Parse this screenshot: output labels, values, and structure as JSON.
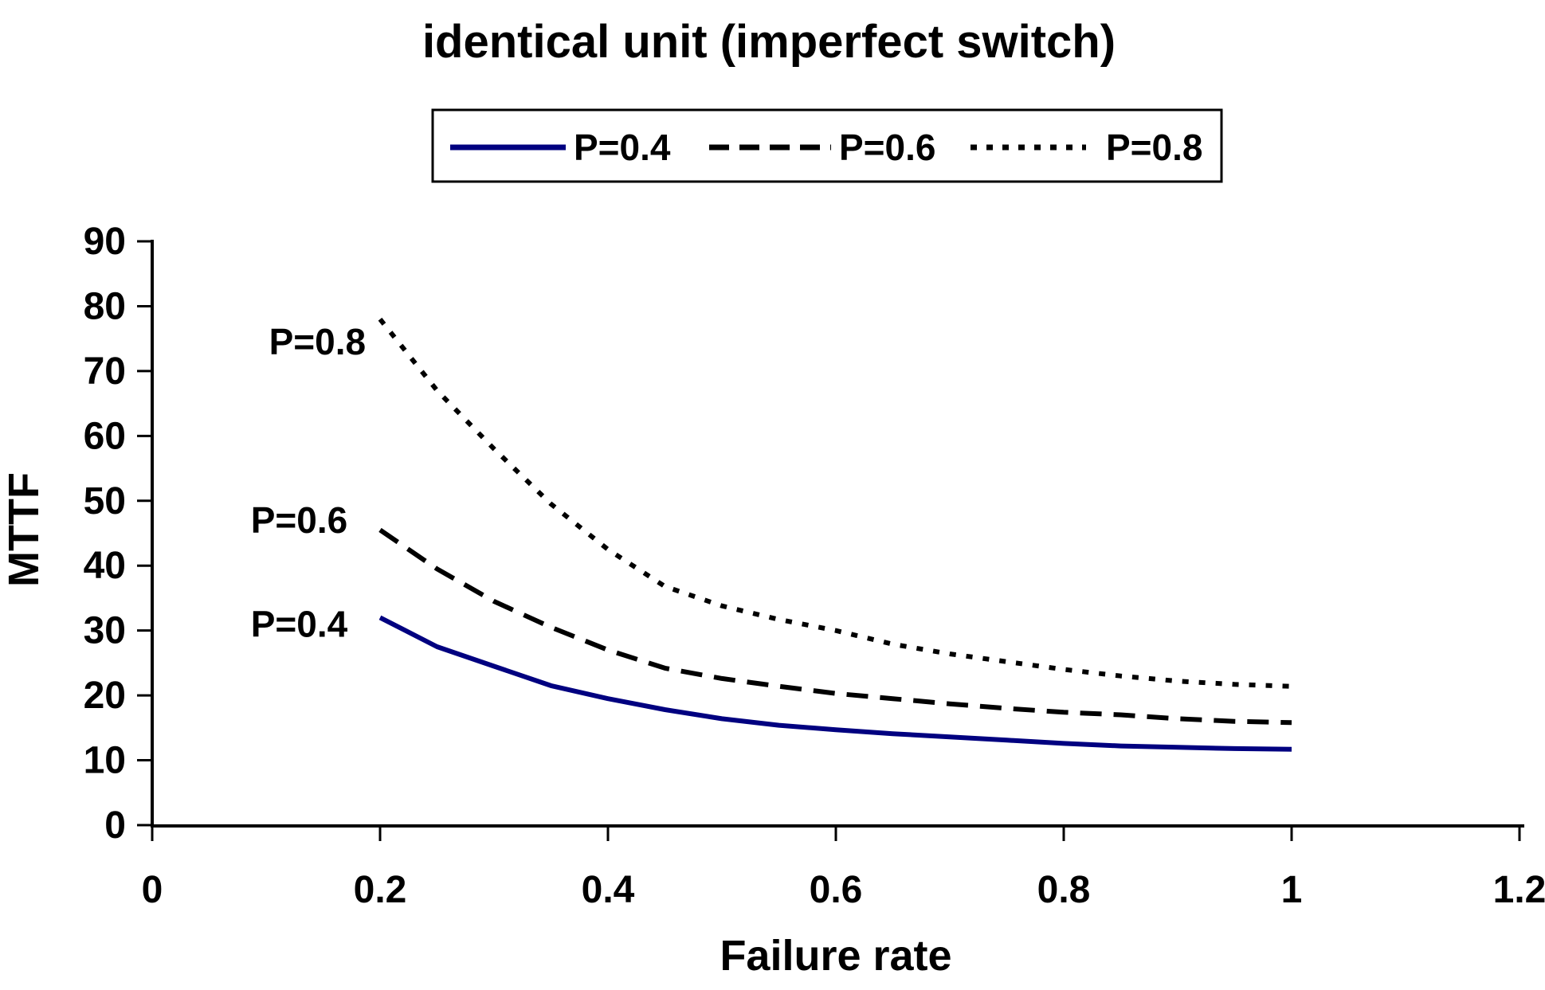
{
  "chart_data": {
    "type": "line",
    "title": "identical unit (imperfect switch)",
    "xlabel": "Failure rate",
    "ylabel": "MTTF",
    "xlim": [
      0,
      1.2
    ],
    "ylim": [
      0,
      90
    ],
    "grid": false,
    "legend_position": "top-center",
    "background_color": "#ffffff",
    "axis_color": "#000000",
    "x_tick_values": [
      0,
      0.2,
      0.4,
      0.6,
      0.8,
      1,
      1.2
    ],
    "x_tick_labels": [
      "0",
      "0.2",
      "0.4",
      "0.6",
      "0.8",
      "1",
      "1.2"
    ],
    "y_tick_values": [
      0,
      10,
      20,
      30,
      40,
      50,
      60,
      70,
      80,
      90
    ],
    "y_tick_labels": [
      "0",
      "10",
      "20",
      "30",
      "40",
      "50",
      "60",
      "70",
      "80",
      "90"
    ],
    "x": [
      0.2,
      0.25,
      0.3,
      0.35,
      0.4,
      0.45,
      0.5,
      0.55,
      0.6,
      0.65,
      0.7,
      0.75,
      0.8,
      0.85,
      0.9,
      0.95,
      1.0
    ],
    "series": [
      {
        "name": "P=0.4",
        "line_style": "solid",
        "color": "#000080",
        "values": [
          32,
          27.5,
          24.5,
          21.5,
          19.5,
          17.8,
          16.4,
          15.4,
          14.7,
          14.1,
          13.6,
          13.1,
          12.6,
          12.2,
          12.0,
          11.8,
          11.7
        ]
      },
      {
        "name": "P=0.6",
        "line_style": "dashed",
        "color": "#000000",
        "values": [
          45.5,
          39.5,
          34.5,
          30.5,
          27.0,
          24.2,
          22.6,
          21.4,
          20.3,
          19.5,
          18.7,
          18.0,
          17.4,
          17.0,
          16.4,
          16.0,
          15.8
        ]
      },
      {
        "name": "P=0.8",
        "line_style": "dotted",
        "color": "#000000",
        "values": [
          78,
          67,
          58,
          49.5,
          42.5,
          36.8,
          33.8,
          31.7,
          30.0,
          27.9,
          26.4,
          25.2,
          24.0,
          23.0,
          22.2,
          21.7,
          21.4
        ]
      }
    ],
    "annotations": [
      {
        "text": "P=0.8",
        "x": 0.145,
        "y": 74.5
      },
      {
        "text": "P=0.6",
        "x": 0.129,
        "y": 47.0
      },
      {
        "text": "P=0.4",
        "x": 0.129,
        "y": 31.0
      }
    ]
  }
}
